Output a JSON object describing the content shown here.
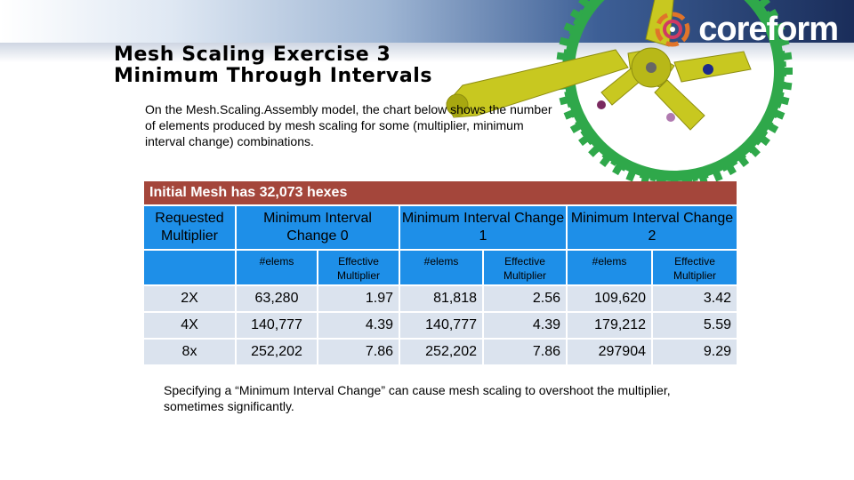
{
  "logo": {
    "text": "coreform"
  },
  "slide": {
    "title_line1": "Mesh Scaling Exercise 3",
    "title_line2": "Minimum Through Intervals",
    "intro": "On the Mesh.Scaling.Assembly model, the chart below shows the number of elements produced by mesh scaling for some (multiplier, minimum interval change) combinations.",
    "footnote": "Specifying a “Minimum Interval Change” can cause mesh scaling to overshoot the multiplier, sometimes significantly."
  },
  "table": {
    "banner": "Initial Mesh has 32,073 hexes",
    "col0_header": "Requested Multiplier",
    "group_headers": [
      "Minimum Interval Change 0",
      "Minimum Interval Change 1",
      "Minimum Interval Change 2"
    ],
    "sub_headers": [
      "#elems",
      "Effective Multiplier",
      "#elems",
      "Effective Multiplier",
      "#elems",
      "Effective Multiplier"
    ],
    "rows": [
      {
        "multiplier": "2X",
        "values": [
          "63,280",
          "1.97",
          "81,818",
          "2.56",
          "109,620",
          "3.42"
        ]
      },
      {
        "multiplier": "4X",
        "values": [
          "140,777",
          "4.39",
          "140,777",
          "4.39",
          "179,212",
          "5.59"
        ]
      },
      {
        "multiplier": "8x",
        "values": [
          "252,202",
          "7.86",
          "252,202",
          "7.86",
          "297904",
          "9.29"
        ]
      }
    ]
  },
  "colors": {
    "banner": "#a4463b",
    "header": "#1e8fe8",
    "cell": "#dbe3ee",
    "gear": "#2fa84a",
    "crank": "#c8c820"
  },
  "icons": [
    "coreform-logo-icon",
    "crankset-gear-image"
  ]
}
